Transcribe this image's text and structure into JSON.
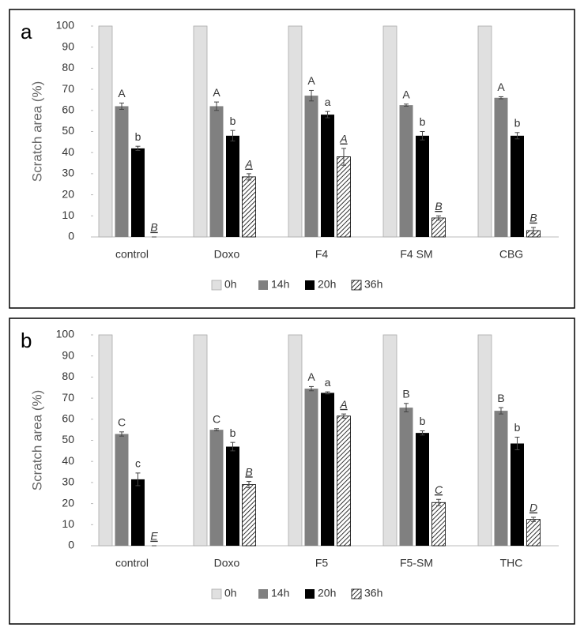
{
  "chart_data": [
    {
      "type": "bar",
      "panel_label": "a",
      "ylabel": "Scratch area (%)",
      "categories": [
        "control",
        "Doxo",
        "F4",
        "F4 SM",
        "CBG"
      ],
      "ylim": [
        0,
        100
      ],
      "yticks": [
        0,
        10,
        20,
        30,
        40,
        50,
        60,
        70,
        80,
        90,
        100
      ],
      "series": [
        {
          "name": "0h",
          "color": "#e0e0e0",
          "values": [
            100,
            100,
            100,
            100,
            100
          ]
        },
        {
          "name": "14h",
          "color": "#808080",
          "values": [
            62,
            62,
            67,
            62.5,
            66
          ],
          "errors": [
            1.5,
            2,
            2.5,
            0.5,
            0.5
          ],
          "labels": [
            "A",
            "A",
            "A",
            "A",
            "A"
          ]
        },
        {
          "name": "20h",
          "color": "#000000",
          "values": [
            42,
            48,
            58,
            48,
            48
          ],
          "errors": [
            1,
            2.5,
            1.5,
            2,
            1.5
          ],
          "labels": [
            "b",
            "b",
            "a",
            "b",
            "b"
          ]
        },
        {
          "name": "36h",
          "color": "#000000",
          "hatch": true,
          "label_style": "italic-underline",
          "values": [
            0,
            28.5,
            38,
            9,
            3
          ],
          "errors": [
            0,
            1.5,
            4,
            1,
            1.5
          ],
          "labels": [
            "B",
            "A",
            "A",
            "B",
            "B"
          ]
        }
      ]
    },
    {
      "type": "bar",
      "panel_label": "b",
      "ylabel": "Scratch area (%)",
      "categories": [
        "control",
        "Doxo",
        "F5",
        "F5-SM",
        "THC"
      ],
      "ylim": [
        0,
        100
      ],
      "yticks": [
        0,
        10,
        20,
        30,
        40,
        50,
        60,
        70,
        80,
        90,
        100
      ],
      "series": [
        {
          "name": "0h",
          "color": "#e0e0e0",
          "values": [
            100,
            100,
            100,
            100,
            100
          ]
        },
        {
          "name": "14h",
          "color": "#808080",
          "values": [
            53,
            55,
            74.5,
            65.5,
            64
          ],
          "errors": [
            1,
            0.5,
            1,
            2,
            1.5
          ],
          "labels": [
            "C",
            "C",
            "A",
            "B",
            "B"
          ]
        },
        {
          "name": "20h",
          "color": "#000000",
          "values": [
            31.5,
            47,
            72.5,
            53.5,
            48.5
          ],
          "errors": [
            3,
            2,
            0.5,
            1,
            3
          ],
          "labels": [
            "c",
            "b",
            "a",
            "b",
            "b"
          ]
        },
        {
          "name": "36h",
          "color": "#000000",
          "hatch": true,
          "label_style": "italic-underline",
          "values": [
            0,
            29,
            61.5,
            20.5,
            12.5
          ],
          "errors": [
            0,
            1.5,
            1,
            1.5,
            1
          ],
          "labels": [
            "E",
            "B",
            "A",
            "C",
            "D"
          ]
        }
      ]
    }
  ]
}
